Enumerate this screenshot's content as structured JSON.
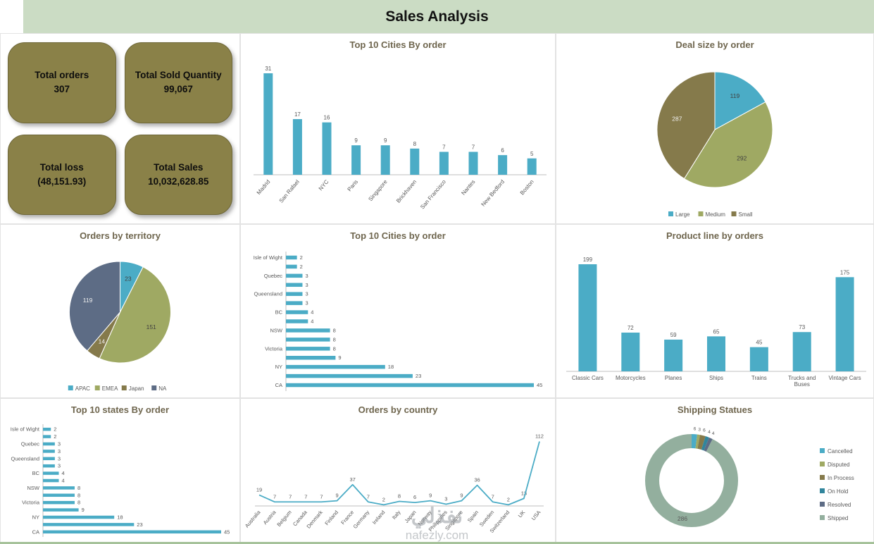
{
  "header": {
    "title": "Sales Analysis"
  },
  "kpis": [
    {
      "label": "Total orders",
      "value": "307"
    },
    {
      "label": "Total Sold Quantity",
      "value": "99,067"
    },
    {
      "label": "Total loss",
      "value": "(48,151.93)"
    },
    {
      "label": "Total Sales",
      "value": "10,032,628.85"
    }
  ],
  "colors": {
    "accent_teal": "#4bacc6",
    "olive": "#9fa963",
    "dark_olive": "#857a4b",
    "slate": "#5d6c85",
    "sage": "#93af9e",
    "card_bg": "#8a8148",
    "header_bg": "#cbdcc4",
    "title_text": "#6e654d",
    "axis_text": "#595959"
  },
  "watermark": {
    "brand_ar": "نفذلي",
    "brand": "nafezly.com"
  },
  "chart_data": [
    {
      "id": "top-cities-bar",
      "type": "bar",
      "title": "Top 10 Cities By order",
      "categories": [
        "Madrid",
        "San Rafael",
        "NYC",
        "Paris",
        "Singapore",
        "Brickhaven",
        "San Francisco",
        "Nantes",
        "New Bedford",
        "Boston"
      ],
      "values": [
        31,
        17,
        16,
        9,
        9,
        8,
        7,
        7,
        6,
        5
      ],
      "color": "#4bacc6",
      "ylim": [
        0,
        31
      ],
      "grid": false,
      "legend_position": "none"
    },
    {
      "id": "deal-size-pie",
      "type": "pie",
      "title": "Deal size by order",
      "labels": [
        "Large",
        "Medium",
        "Small"
      ],
      "values": [
        119,
        292,
        287
      ],
      "colors": [
        "#4bacc6",
        "#9fa963",
        "#857a4b"
      ],
      "legend_position": "bottom"
    },
    {
      "id": "territory-pie",
      "type": "pie",
      "title": "Orders by territory",
      "labels": [
        "APAC",
        "EMEA",
        "Japan",
        "NA"
      ],
      "values": [
        23,
        151,
        14,
        119
      ],
      "colors": [
        "#4bacc6",
        "#9fa963",
        "#857a4b",
        "#5d6c85"
      ],
      "legend_position": "bottom"
    },
    {
      "id": "top-cities-hbar",
      "type": "bar",
      "orientation": "horizontal",
      "title": "Top 10 Cities by order",
      "categories": [
        "Isle of Wight",
        "",
        "Quebec",
        "",
        "Queensland",
        "",
        "BC",
        "",
        "NSW",
        "",
        "Victoria",
        "",
        "NY",
        "",
        "CA"
      ],
      "values": [
        2,
        2,
        3,
        3,
        3,
        3,
        4,
        4,
        8,
        8,
        8,
        9,
        18,
        23,
        45
      ],
      "color": "#4bacc6",
      "xlim": [
        0,
        45
      ],
      "legend_position": "none"
    },
    {
      "id": "product-line-bar",
      "type": "bar",
      "title": "Product line by orders",
      "categories": [
        "Classic Cars",
        "Motorcycles",
        "Planes",
        "Ships",
        "Trains",
        "Trucks and Buses",
        "Vintage Cars"
      ],
      "values": [
        199,
        72,
        59,
        65,
        45,
        73,
        175
      ],
      "color": "#4bacc6",
      "ylim": [
        0,
        199
      ],
      "legend_position": "none"
    },
    {
      "id": "states-hbar",
      "type": "bar",
      "orientation": "horizontal",
      "title": "Top 10 states By order",
      "categories": [
        "Isle of Wight",
        "",
        "Quebec",
        "",
        "Queensland",
        "",
        "BC",
        "",
        "NSW",
        "",
        "Victoria",
        "",
        "NY",
        "",
        "CA"
      ],
      "values": [
        2,
        2,
        3,
        3,
        3,
        3,
        4,
        4,
        8,
        8,
        8,
        9,
        18,
        23,
        45
      ],
      "color": "#4bacc6",
      "xlim": [
        0,
        45
      ],
      "legend_position": "none"
    },
    {
      "id": "orders-by-country-line",
      "type": "line",
      "title": "Orders by country",
      "categories": [
        "Australia",
        "Austria",
        "Belgium",
        "Canada",
        "Denmark",
        "Finland",
        "France",
        "Germany",
        "Ireland",
        "Italy",
        "Japan",
        "Norway",
        "Philippines",
        "Singapore",
        "Spain",
        "Sweden",
        "Switzerland",
        "UK",
        "USA"
      ],
      "values": [
        19,
        7,
        7,
        7,
        7,
        9,
        37,
        7,
        2,
        8,
        6,
        9,
        3,
        9,
        36,
        7,
        2,
        13,
        112
      ],
      "color": "#4bacc6",
      "ylim": [
        0,
        120
      ],
      "legend_position": "none"
    },
    {
      "id": "shipping-status-donut",
      "type": "pie",
      "subtype": "donut",
      "title": "Shipping Statues",
      "labels": [
        "Cancelled",
        "Disputed",
        "In Process",
        "On Hold",
        "Resolved",
        "Shipped"
      ],
      "values": [
        6,
        3,
        6,
        4,
        4,
        286
      ],
      "colors": [
        "#4bacc6",
        "#9fa963",
        "#857a4b",
        "#31859c",
        "#5d6c85",
        "#93af9e"
      ],
      "legend_position": "right"
    }
  ]
}
